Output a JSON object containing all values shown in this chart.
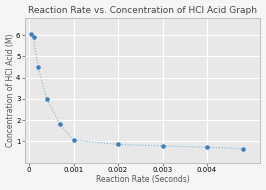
{
  "title": "Reaction Rate vs. Concentration of HCl Acid Graph",
  "xlabel": "Reaction Rate (Seconds)",
  "ylabel": "Concentration of HCl Acid (M)",
  "x_data": [
    5e-05,
    0.0001,
    0.0002,
    0.0004,
    0.0007,
    0.001,
    0.002,
    0.003,
    0.004,
    0.0048
  ],
  "y_data": [
    6.05,
    5.9,
    4.5,
    3.0,
    1.8,
    1.05,
    0.85,
    0.78,
    0.72,
    0.65
  ],
  "line_color": "#7ab4d8",
  "marker_color": "#3a7fbf",
  "plot_bg_color": "#e8e8e8",
  "fig_bg_color": "#f5f5f5",
  "grid_color": "#ffffff",
  "title_fontsize": 6.5,
  "label_fontsize": 5.5,
  "tick_fontsize": 5,
  "xlim": [
    -0.0001,
    0.0052
  ],
  "ylim": [
    0,
    6.8
  ],
  "xticks": [
    0.0,
    0.001,
    0.002,
    0.003,
    0.004
  ],
  "yticks": [
    1,
    2,
    3,
    4,
    5,
    6
  ]
}
